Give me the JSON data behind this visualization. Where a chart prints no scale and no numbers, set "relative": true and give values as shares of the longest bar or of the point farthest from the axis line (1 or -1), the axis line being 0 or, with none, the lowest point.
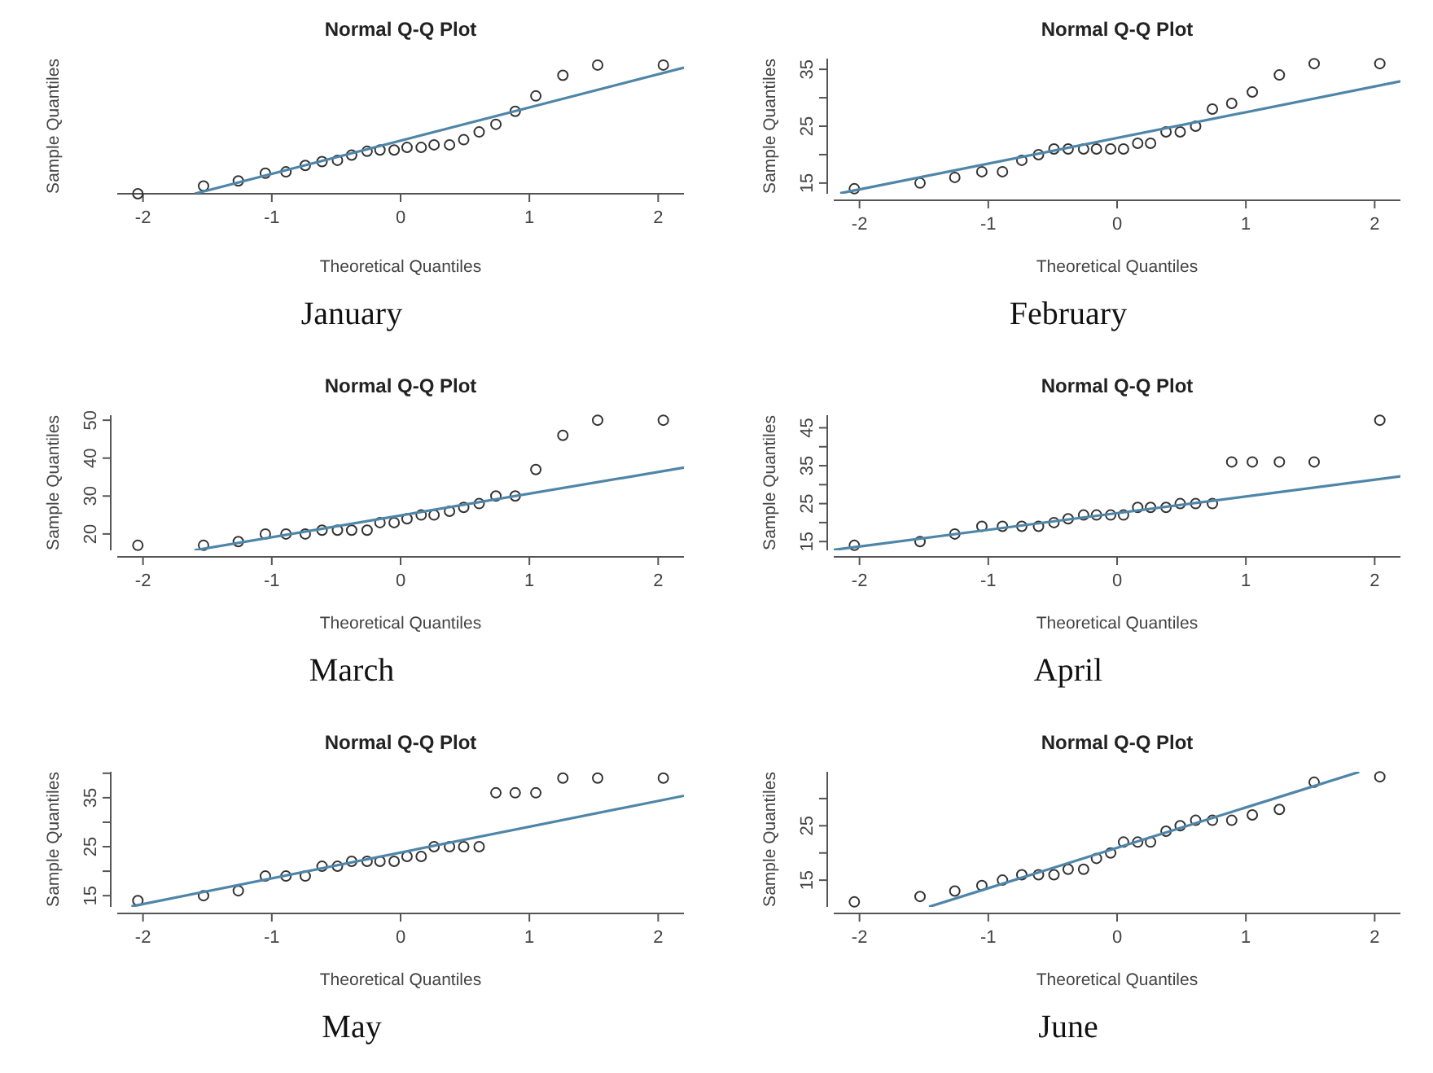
{
  "chart_data": [
    {
      "type": "scatter",
      "title": "Normal Q-Q Plot",
      "xlabel": "Theoretical Quantiles",
      "ylabel": "Sample Quantiles",
      "annotations": [
        "January"
      ],
      "relative": true,
      "grid": false,
      "xlim": [
        -2.2,
        2.2
      ],
      "xticks": [
        -2,
        -1,
        0,
        1,
        2
      ],
      "x": [
        -2.04,
        -1.53,
        -1.26,
        -1.05,
        -0.89,
        -0.74,
        -0.61,
        -0.49,
        -0.38,
        -0.26,
        -0.16,
        -0.05,
        0.05,
        0.16,
        0.26,
        0.38,
        0.49,
        0.61,
        0.74,
        0.89,
        1.05,
        1.26,
        1.53,
        2.04
      ],
      "series": [
        {
          "type": "scatter",
          "marker": "circle",
          "color": "#333333",
          "values": [
            0,
            0.06,
            0.1,
            0.16,
            0.17,
            0.22,
            0.25,
            0.26,
            0.3,
            0.33,
            0.34,
            0.34,
            0.36,
            0.36,
            0.38,
            0.38,
            0.42,
            0.48,
            0.54,
            0.64,
            0.76,
            0.92,
            1,
            1
          ]
        },
        {
          "type": "line",
          "color": "#4f86a8",
          "x": [
            -1.6,
            2.2
          ],
          "values": [
            0,
            0.98
          ]
        }
      ]
    },
    {
      "type": "scatter",
      "title": "Normal Q-Q Plot",
      "xlabel": "Theoretical Quantiles",
      "ylabel": "Sample Quantiles",
      "annotations": [
        "February"
      ],
      "grid": false,
      "xlim": [
        -2.2,
        2.2
      ],
      "xticks": [
        -2,
        -1,
        0,
        1,
        2
      ],
      "ylim": [
        13.12,
        36.88
      ],
      "yticks": [
        15,
        {
          "value": 20,
          "label": null
        },
        25,
        {
          "value": 30,
          "label": null
        },
        35
      ],
      "x": [
        -2.04,
        -1.53,
        -1.26,
        -1.05,
        -0.89,
        -0.74,
        -0.61,
        -0.49,
        -0.38,
        -0.26,
        -0.16,
        -0.05,
        0.05,
        0.16,
        0.26,
        0.38,
        0.49,
        0.61,
        0.74,
        0.89,
        1.05,
        1.26,
        1.53,
        2.04
      ],
      "series": [
        {
          "type": "scatter",
          "marker": "circle",
          "color": "#333333",
          "values": [
            14,
            15,
            16,
            17,
            17,
            19,
            20,
            21,
            21,
            21,
            21,
            21,
            21,
            22,
            22,
            24,
            24,
            25,
            28,
            29,
            31,
            34,
            36,
            36
          ]
        },
        {
          "type": "line",
          "color": "#4f86a8",
          "x": [
            -2.15,
            2.2
          ],
          "values": [
            13.2,
            32.9
          ]
        }
      ]
    },
    {
      "type": "scatter",
      "title": "Normal Q-Q Plot",
      "xlabel": "Theoretical Quantiles",
      "ylabel": "Sample Quantiles",
      "annotations": [
        "March"
      ],
      "grid": false,
      "xlim": [
        -2.2,
        2.2
      ],
      "xticks": [
        -2,
        -1,
        0,
        1,
        2
      ],
      "ylim": [
        15.68,
        51.32
      ],
      "yticks": [
        20,
        30,
        40,
        50
      ],
      "x": [
        -2.04,
        -1.53,
        -1.26,
        -1.05,
        -0.89,
        -0.74,
        -0.61,
        -0.49,
        -0.38,
        -0.26,
        -0.16,
        -0.05,
        0.05,
        0.16,
        0.26,
        0.38,
        0.49,
        0.61,
        0.74,
        0.89,
        1.05,
        1.26,
        1.53,
        2.04
      ],
      "series": [
        {
          "type": "scatter",
          "marker": "circle",
          "color": "#333333",
          "values": [
            17,
            17,
            18,
            20,
            20,
            20,
            21,
            21,
            21,
            21,
            23,
            23,
            24,
            25,
            25,
            26,
            27,
            28,
            30,
            30,
            37,
            46,
            50,
            50
          ]
        },
        {
          "type": "line",
          "color": "#4f86a8",
          "x": [
            -1.6,
            2.2
          ],
          "values": [
            15.7,
            37.5
          ]
        }
      ]
    },
    {
      "type": "scatter",
      "title": "Normal Q-Q Plot",
      "xlabel": "Theoretical Quantiles",
      "ylabel": "Sample Quantiles",
      "annotations": [
        "April"
      ],
      "grid": false,
      "xlim": [
        -2.2,
        2.2
      ],
      "xticks": [
        -2,
        -1,
        0,
        1,
        2
      ],
      "ylim": [
        12.68,
        48.32
      ],
      "yticks": [
        15,
        {
          "value": 20,
          "label": null
        },
        25,
        {
          "value": 30,
          "label": null
        },
        35,
        {
          "value": 40,
          "label": null
        },
        45
      ],
      "x": [
        -2.04,
        -1.53,
        -1.26,
        -1.05,
        -0.89,
        -0.74,
        -0.61,
        -0.49,
        -0.38,
        -0.26,
        -0.16,
        -0.05,
        0.05,
        0.16,
        0.26,
        0.38,
        0.49,
        0.61,
        0.74,
        0.89,
        1.05,
        1.26,
        1.53,
        2.04
      ],
      "series": [
        {
          "type": "scatter",
          "marker": "circle",
          "color": "#333333",
          "values": [
            14,
            15,
            17,
            19,
            19,
            19,
            19,
            20,
            21,
            22,
            22,
            22,
            22,
            24,
            24,
            24,
            25,
            25,
            25,
            36,
            36,
            36,
            36,
            47
          ]
        },
        {
          "type": "line",
          "color": "#4f86a8",
          "x": [
            -2.2,
            2.2
          ],
          "values": [
            12.8,
            32.2
          ]
        }
      ]
    },
    {
      "type": "scatter",
      "title": "Normal Q-Q Plot",
      "xlabel": "Theoretical Quantiles",
      "ylabel": "Sample Quantiles",
      "annotations": [
        "May"
      ],
      "grid": false,
      "xlim": [
        -2.2,
        2.2
      ],
      "xticks": [
        -2,
        -1,
        0,
        1,
        2
      ],
      "ylim": [
        12.7,
        40.3
      ],
      "yticks": [
        15,
        {
          "value": 20,
          "label": null
        },
        25,
        {
          "value": 30,
          "label": null
        },
        35,
        {
          "value": 40,
          "label": null
        }
      ],
      "x": [
        -2.04,
        -1.53,
        -1.26,
        -1.05,
        -0.89,
        -0.74,
        -0.61,
        -0.49,
        -0.38,
        -0.26,
        -0.16,
        -0.05,
        0.05,
        0.16,
        0.26,
        0.38,
        0.49,
        0.61,
        0.74,
        0.89,
        1.05,
        1.26,
        1.53,
        2.04
      ],
      "series": [
        {
          "type": "scatter",
          "marker": "circle",
          "color": "#333333",
          "values": [
            14,
            15,
            16,
            19,
            19,
            19,
            21,
            21,
            22,
            22,
            22,
            22,
            23,
            23,
            25,
            25,
            25,
            25,
            36,
            36,
            36,
            39,
            39,
            39
          ]
        },
        {
          "type": "line",
          "color": "#4f86a8",
          "x": [
            -2.09,
            2.2
          ],
          "values": [
            12.8,
            35.4
          ]
        }
      ]
    },
    {
      "type": "scatter",
      "title": "Normal Q-Q Plot",
      "xlabel": "Theoretical Quantiles",
      "ylabel": "Sample Quantiles",
      "annotations": [
        "June"
      ],
      "grid": false,
      "xlim": [
        -2.2,
        2.2
      ],
      "xticks": [
        -2,
        -1,
        0,
        1,
        2
      ],
      "ylim": [
        10.08,
        34.92
      ],
      "yticks": [
        15,
        {
          "value": 20,
          "label": null
        },
        25,
        {
          "value": 30,
          "label": null
        }
      ],
      "x": [
        -2.04,
        -1.53,
        -1.26,
        -1.05,
        -0.89,
        -0.74,
        -0.61,
        -0.49,
        -0.38,
        -0.26,
        -0.16,
        -0.05,
        0.05,
        0.16,
        0.26,
        0.38,
        0.49,
        0.61,
        0.74,
        0.89,
        1.05,
        1.26,
        1.53,
        2.04
      ],
      "series": [
        {
          "type": "scatter",
          "marker": "circle",
          "color": "#333333",
          "values": [
            11,
            12,
            13,
            14,
            15,
            16,
            16,
            16,
            17,
            17,
            19,
            20,
            22,
            22,
            22,
            24,
            25,
            26,
            26,
            26,
            27,
            28,
            33,
            34
          ]
        },
        {
          "type": "line",
          "color": "#4f86a8",
          "x": [
            -1.46,
            1.88
          ],
          "values": [
            10.1,
            34.9
          ]
        }
      ]
    }
  ]
}
